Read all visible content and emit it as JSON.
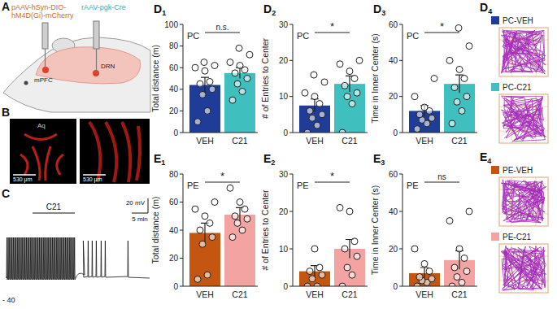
{
  "figure": {
    "panel_a": {
      "label": "A",
      "virus_1": [
        "pAAV-hSyn-DIO-",
        "hM4D(Gi)-mCherry"
      ],
      "virus_2": "rAAV-pgk-Cre",
      "region_1": "mPFC",
      "region_2": "DRN"
    },
    "panel_b": {
      "label": "B",
      "region": "Aq",
      "scale_1": "530 μm",
      "scale_2": "530 μm"
    },
    "panel_c": {
      "label": "C",
      "drug": "C21",
      "voltage_scale": "20 mV",
      "time_scale": "5 min",
      "baseline": "- 40"
    },
    "panel_d4": {
      "label": "D4",
      "legend": [
        {
          "name": "PC-VEH",
          "color": "#1f3c98"
        },
        {
          "name": "PC-C21",
          "color": "#40bfbf"
        }
      ]
    },
    "panel_e4": {
      "label": "E4",
      "legend": [
        {
          "name": "PE-VEH",
          "color": "#c4560f"
        },
        {
          "name": "PE-C21",
          "color": "#f4a3a3"
        }
      ]
    }
  },
  "chart_data": [
    {
      "type": "bar",
      "label": "D1",
      "title": "PC",
      "ylabel": "Total distance (m)",
      "categories": [
        "VEH",
        "C21"
      ],
      "values": [
        44,
        55
      ],
      "errors": [
        7,
        5
      ],
      "points": [
        [
          10,
          20,
          35,
          40,
          45,
          47,
          57,
          60,
          62,
          65
        ],
        [
          30,
          38,
          45,
          50,
          55,
          58,
          62,
          65,
          72,
          78
        ]
      ],
      "colors": [
        "#1f3c98",
        "#40bfbf"
      ],
      "ylim": [
        0,
        100
      ],
      "yticks": [
        0,
        20,
        40,
        60,
        80,
        100
      ],
      "significance": "n.s."
    },
    {
      "type": "bar",
      "label": "D2",
      "title": "PC",
      "ylabel": "# of Entries  to Center",
      "categories": [
        "VEH",
        "C21"
      ],
      "values": [
        7.5,
        13.5
      ],
      "errors": [
        1.8,
        2.2
      ],
      "points": [
        [
          0,
          2,
          4,
          5,
          6,
          8,
          10,
          11,
          14,
          16
        ],
        [
          0,
          8,
          10,
          11,
          13,
          15,
          17,
          19,
          20
        ]
      ],
      "colors": [
        "#1f3c98",
        "#40bfbf"
      ],
      "ylim": [
        0,
        30
      ],
      "yticks": [
        0,
        10,
        20,
        30
      ],
      "significance": "*"
    },
    {
      "type": "bar",
      "label": "D3",
      "title": "PC",
      "ylabel": "Time in Inner Center (s)",
      "categories": [
        "VEH",
        "C21"
      ],
      "values": [
        12,
        27
      ],
      "errors": [
        3,
        5
      ],
      "points": [
        [
          2,
          5,
          7,
          8,
          10,
          12,
          14,
          20,
          30
        ],
        [
          5,
          12,
          17,
          20,
          25,
          30,
          35,
          40,
          48,
          58
        ]
      ],
      "colors": [
        "#1f3c98",
        "#40bfbf"
      ],
      "ylim": [
        0,
        60
      ],
      "yticks": [
        0,
        20,
        40,
        60
      ],
      "significance": "*"
    },
    {
      "type": "bar",
      "label": "E1",
      "title": "PE",
      "ylabel": "Total distance (m)",
      "categories": [
        "VEH",
        "C21"
      ],
      "values": [
        38,
        51
      ],
      "errors": [
        7,
        5
      ],
      "points": [
        [
          5,
          8,
          30,
          35,
          40,
          45,
          50,
          55,
          60
        ],
        [
          35,
          40,
          45,
          48,
          50,
          55,
          60,
          70
        ]
      ],
      "colors": [
        "#c4560f",
        "#f4a3a3"
      ],
      "ylim": [
        0,
        80
      ],
      "yticks": [
        0,
        20,
        40,
        60,
        80
      ],
      "significance": "*"
    },
    {
      "type": "bar",
      "label": "E2",
      "title": "PE",
      "ylabel": "# of Entries  to Center",
      "categories": [
        "VEH",
        "C21"
      ],
      "values": [
        4,
        10
      ],
      "errors": [
        1.5,
        2.5
      ],
      "points": [
        [
          0,
          0,
          2,
          3,
          4,
          5,
          10
        ],
        [
          0,
          3,
          5,
          8,
          10,
          12,
          20,
          21
        ]
      ],
      "colors": [
        "#c4560f",
        "#f4a3a3"
      ],
      "ylim": [
        0,
        30
      ],
      "yticks": [
        0,
        10,
        20,
        30
      ],
      "significance": "*"
    },
    {
      "type": "bar",
      "label": "E3",
      "title": "PE",
      "ylabel": "Time in Inner Center (s)",
      "categories": [
        "VEH",
        "C21"
      ],
      "values": [
        7,
        14
      ],
      "errors": [
        3,
        5
      ],
      "points": [
        [
          0,
          2,
          3,
          4,
          5,
          8,
          12,
          20
        ],
        [
          0,
          2,
          5,
          8,
          10,
          15,
          20,
          35,
          40
        ]
      ],
      "colors": [
        "#c4560f",
        "#f4a3a3"
      ],
      "ylim": [
        0,
        60
      ],
      "yticks": [
        0,
        20,
        40,
        60
      ],
      "significance": "ns"
    }
  ]
}
